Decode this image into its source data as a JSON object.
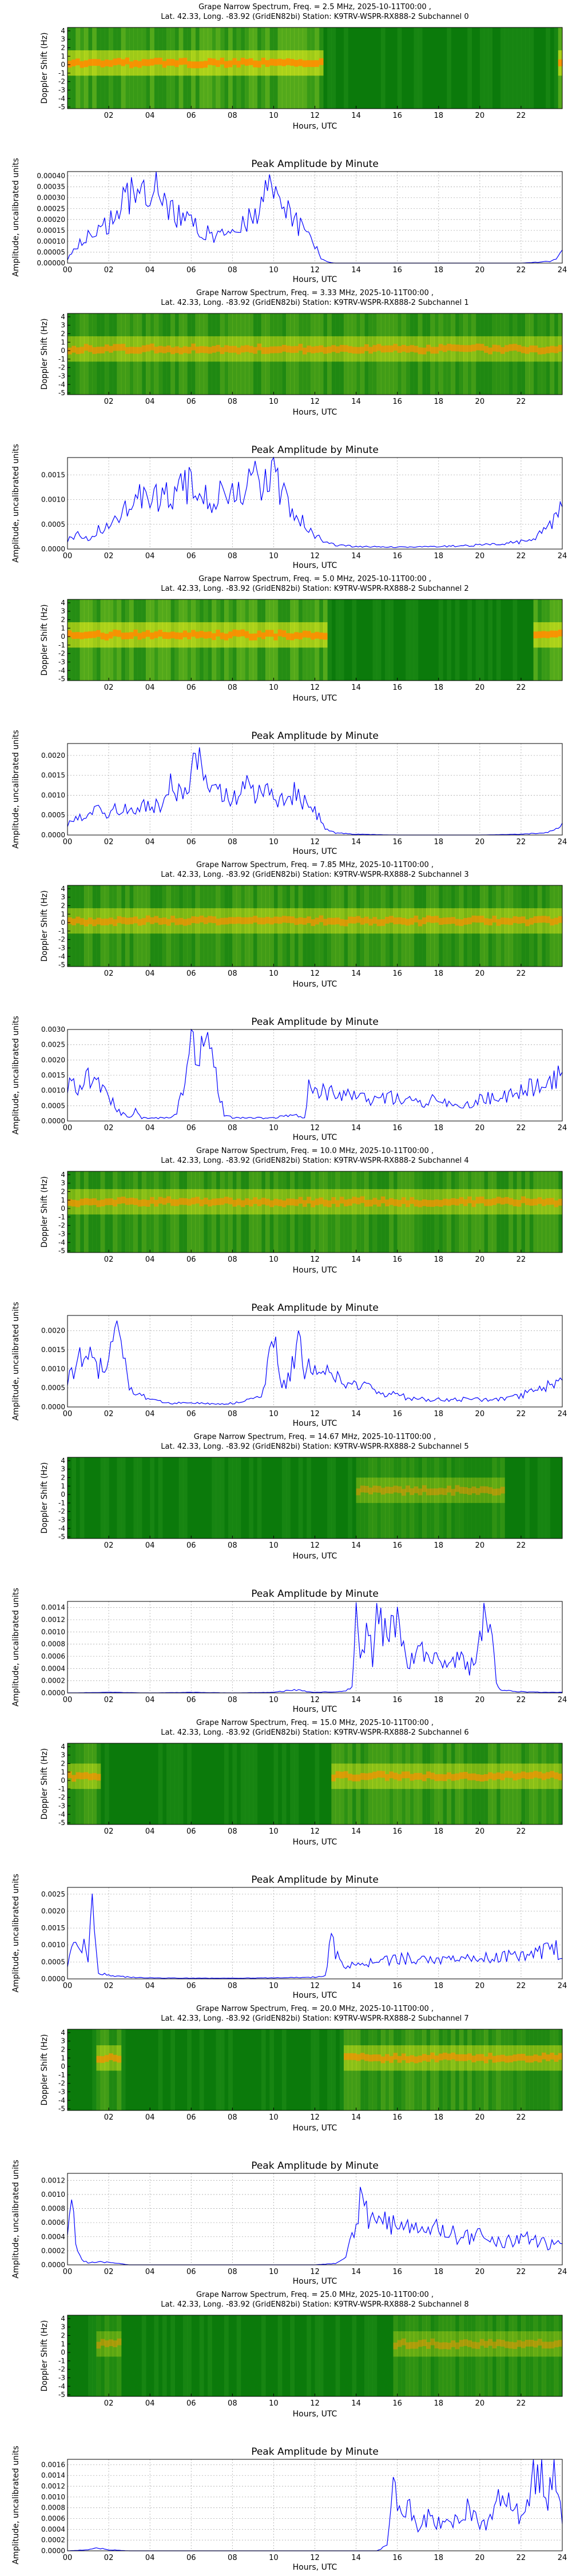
{
  "common": {
    "spec_ylabel": "Doppler Shift (Hz)",
    "amp_ylabel": "Amplitude, uncalibrated units",
    "xlabel": "Hours, UTC",
    "amp_title": "Peak Amplitude by Minute",
    "spec_xticks": [
      "02",
      "04",
      "06",
      "08",
      "10",
      "12",
      "14",
      "16",
      "18",
      "20",
      "22"
    ],
    "amp_xticks": [
      "00",
      "02",
      "04",
      "06",
      "08",
      "10",
      "12",
      "14",
      "16",
      "18",
      "20",
      "22",
      "24"
    ],
    "spec_yticks": [
      "4",
      "3",
      "2",
      "1",
      "0",
      "-1",
      "-2",
      "-3",
      "-4",
      "-5"
    ],
    "line_color": "#0000ff",
    "colors": {
      "dark_green": "#0b7a0b",
      "green": "#2f9c1f",
      "yellow": "#f2f21a",
      "orange": "#ff8c00",
      "red": "#ff1a00"
    }
  },
  "panels": [
    {
      "spec_title1": "Grape Narrow Spectrum, Freq. = 2.5 MHz, 2025-10-11T00:00 ,",
      "spec_title2": "Lat.  42.33, Long. -83.92 (GridEN82bi) Station: K9TRV-WSPR-RX888-2 Subchannel 0",
      "amp_yticks": [
        "0.00040",
        "0.00035",
        "0.00030",
        "0.00025",
        "0.00020",
        "0.00015",
        "0.00010",
        "0.00005",
        "0.00000"
      ],
      "spec_profile": {
        "active_hours": [
          [
            0,
            12.3
          ],
          [
            23.7,
            24
          ]
        ],
        "band_center_hz": 0.2,
        "intensity": "high"
      }
    },
    {
      "spec_title1": "Grape Narrow Spectrum, Freq. = 3.33 MHz, 2025-10-11T00:00 ,",
      "spec_title2": "Lat.  42.33, Long. -83.92 (GridEN82bi) Station: K9TRV-WSPR-RX888-2 Subchannel 1",
      "amp_yticks": [
        "0.0015",
        "0.0010",
        "0.0005",
        "0.0000"
      ],
      "spec_profile": {
        "active_hours": [
          [
            0,
            24
          ]
        ],
        "band_center_hz": 0.2,
        "intensity": "medium"
      }
    },
    {
      "spec_title1": "Grape Narrow Spectrum, Freq. = 5.0 MHz, 2025-10-11T00:00 ,",
      "spec_title2": "Lat.  42.33, Long. -83.92 (GridEN82bi) Station: K9TRV-WSPR-RX888-2 Subchannel 2",
      "amp_yticks": [
        "0.0020",
        "0.0015",
        "0.0010",
        "0.0005",
        "0.0000"
      ],
      "spec_profile": {
        "active_hours": [
          [
            0,
            12.5
          ],
          [
            22.5,
            24
          ]
        ],
        "band_center_hz": 0.2,
        "intensity": "high"
      }
    },
    {
      "spec_title1": "Grape Narrow Spectrum, Freq. = 7.85 MHz, 2025-10-11T00:00 ,",
      "spec_title2": "Lat.  42.33, Long. -83.92 (GridEN82bi) Station: K9TRV-WSPR-RX888-2 Subchannel 3",
      "amp_yticks": [
        "0.0030",
        "0.0025",
        "0.0020",
        "0.0015",
        "0.0010",
        "0.0005",
        "0.0000"
      ],
      "spec_profile": {
        "active_hours": [
          [
            0,
            24
          ]
        ],
        "band_center_hz": 0.2,
        "intensity": "medium"
      }
    },
    {
      "spec_title1": "Grape Narrow Spectrum, Freq. = 10.0 MHz, 2025-10-11T00:00 ,",
      "spec_title2": "Lat.  42.33, Long. -83.92 (GridEN82bi) Station: K9TRV-WSPR-RX888-2 Subchannel 4",
      "amp_yticks": [
        "0.0020",
        "0.0015",
        "0.0010",
        "0.0005",
        "0.0000"
      ],
      "spec_profile": {
        "active_hours": [
          [
            0,
            24
          ]
        ],
        "band_center_hz": 0.8,
        "intensity": "medium"
      }
    },
    {
      "spec_title1": "Grape Narrow Spectrum, Freq. = 14.67 MHz, 2025-10-11T00:00 ,",
      "spec_title2": "Lat.  42.33, Long. -83.92 (GridEN82bi) Station: K9TRV-WSPR-RX888-2 Subchannel 5",
      "amp_yticks": [
        "0.0014",
        "0.0012",
        "0.0010",
        "0.0008",
        "0.0006",
        "0.0004",
        "0.0002",
        "0.0000"
      ],
      "spec_profile": {
        "active_hours": [
          [
            13.8,
            21
          ]
        ],
        "band_center_hz": 0.5,
        "intensity": "low"
      }
    },
    {
      "spec_title1": "Grape Narrow Spectrum, Freq. = 15.0 MHz, 2025-10-11T00:00 ,",
      "spec_title2": "Lat.  42.33, Long. -83.92 (GridEN82bi) Station: K9TRV-WSPR-RX888-2 Subchannel 6",
      "amp_yticks": [
        "0.0025",
        "0.0020",
        "0.0015",
        "0.0010",
        "0.0005",
        "0.0000"
      ],
      "spec_profile": {
        "active_hours": [
          [
            0,
            1.5
          ],
          [
            12.8,
            24
          ]
        ],
        "band_center_hz": 0.5,
        "intensity": "medium"
      }
    },
    {
      "spec_title1": "Grape Narrow Spectrum, Freq. = 20.0 MHz, 2025-10-11T00:00 ,",
      "spec_title2": "Lat.  42.33, Long. -83.92 (GridEN82bi) Station: K9TRV-WSPR-RX888-2 Subchannel 7",
      "amp_yticks": [
        "0.0012",
        "0.0010",
        "0.0008",
        "0.0006",
        "0.0004",
        "0.0002",
        "0.0000"
      ],
      "spec_profile": {
        "active_hours": [
          [
            1.3,
            2.5
          ],
          [
            13.3,
            24
          ]
        ],
        "band_center_hz": 1.0,
        "intensity": "medium"
      }
    },
    {
      "spec_title1": "Grape Narrow Spectrum, Freq. = 25.0 MHz, 2025-10-11T00:00 ,",
      "spec_title2": "Lat.  42.33, Long. -83.92 (GridEN82bi) Station: K9TRV-WSPR-RX888-2 Subchannel 8",
      "amp_yticks": [
        "0.0016",
        "0.0014",
        "0.0012",
        "0.0010",
        "0.0008",
        "0.0006",
        "0.0004",
        "0.0002",
        "0.0000"
      ],
      "spec_profile": {
        "active_hours": [
          [
            1.3,
            2.5
          ],
          [
            15.7,
            24
          ]
        ],
        "band_center_hz": 1.0,
        "intensity": "low"
      }
    }
  ],
  "chart_data": [
    {
      "type": "line",
      "title": "Peak Amplitude by Minute",
      "subchannel": 0,
      "xlabel": "Hours, UTC",
      "ylabel": "Amplitude, uncalibrated units",
      "xlim": [
        0,
        24
      ],
      "ylim": [
        0,
        0.00042
      ],
      "x": [
        0,
        0.5,
        1,
        1.5,
        2,
        2.5,
        3,
        3.3,
        3.8,
        4.5,
        5,
        5.5,
        6,
        6.5,
        7,
        7.5,
        8,
        8.5,
        9,
        9.5,
        9.8,
        10.2,
        10.5,
        11,
        11.5,
        12,
        12.3,
        12.6,
        13,
        14,
        16,
        18,
        20,
        22,
        23,
        23.5,
        23.8,
        24
      ],
      "y": [
        2e-05,
        8e-05,
        0.00012,
        0.00015,
        0.00018,
        0.00025,
        0.0003,
        0.00039,
        0.00035,
        0.00032,
        0.00025,
        0.00022,
        0.00018,
        0.00014,
        0.00013,
        0.00012,
        0.00014,
        0.00018,
        0.00022,
        0.00028,
        0.00034,
        0.0003,
        0.00024,
        0.0002,
        0.00014,
        8e-05,
        2e-05,
        5e-06,
        0,
        0,
        0,
        0,
        0,
        0,
        5e-06,
        1e-05,
        3e-05,
        6e-05
      ]
    },
    {
      "type": "line",
      "title": "Peak Amplitude by Minute",
      "subchannel": 1,
      "xlabel": "Hours, UTC",
      "ylabel": "Amplitude, uncalibrated units",
      "xlim": [
        0,
        24
      ],
      "ylim": [
        0,
        0.00185
      ],
      "x": [
        0,
        0.5,
        1,
        1.5,
        2,
        2.5,
        3,
        3.5,
        4,
        4.5,
        5,
        5.5,
        6,
        6.5,
        7,
        7.5,
        8,
        8.5,
        9,
        9.5,
        10,
        10.3,
        10.6,
        11,
        11.5,
        12,
        12.5,
        13,
        14,
        16,
        18,
        20,
        21,
        22,
        23,
        23.5,
        24
      ],
      "y": [
        0.0002,
        0.0003,
        0.0002,
        0.0004,
        0.0005,
        0.0007,
        0.0009,
        0.0012,
        0.001,
        0.0011,
        0.001,
        0.0012,
        0.0013,
        0.0011,
        0.0009,
        0.0012,
        0.0013,
        0.0011,
        0.0015,
        0.0013,
        0.0017,
        0.0012,
        0.001,
        0.0007,
        0.0005,
        0.0003,
        0.00015,
        8e-05,
        5e-05,
        4e-05,
        5e-05,
        8e-05,
        0.0001,
        0.00015,
        0.0003,
        0.0005,
        0.00085
      ]
    },
    {
      "type": "line",
      "title": "Peak Amplitude by Minute",
      "subchannel": 2,
      "xlabel": "Hours, UTC",
      "ylabel": "Amplitude, uncalibrated units",
      "xlim": [
        0,
        24
      ],
      "ylim": [
        0,
        0.0023
      ],
      "x": [
        0,
        0.5,
        1,
        1.5,
        2,
        2.5,
        3,
        3.5,
        4,
        4.5,
        5,
        5.5,
        6,
        6.3,
        6.7,
        7,
        7.5,
        8,
        8.5,
        9,
        9.5,
        10,
        10.5,
        11,
        11.5,
        12,
        12.5,
        13,
        14,
        16,
        18,
        20,
        22,
        23,
        23.5,
        24
      ],
      "y": [
        0.0003,
        0.0004,
        0.0005,
        0.0006,
        0.0005,
        0.0007,
        0.0006,
        0.0008,
        0.0007,
        0.0008,
        0.0012,
        0.001,
        0.0014,
        0.0021,
        0.0013,
        0.0011,
        0.001,
        0.0009,
        0.0013,
        0.001,
        0.0012,
        0.001,
        0.0009,
        0.0011,
        0.0008,
        0.0006,
        0.0002,
        5e-05,
        2e-05,
        0,
        0,
        0,
        2e-05,
        5e-05,
        0.0001,
        0.0003
      ]
    },
    {
      "type": "line",
      "title": "Peak Amplitude by Minute",
      "subchannel": 3,
      "xlabel": "Hours, UTC",
      "ylabel": "Amplitude, uncalibrated units",
      "xlim": [
        0,
        24
      ],
      "ylim": [
        0,
        0.003
      ],
      "x": [
        0,
        0.5,
        1,
        1.5,
        2,
        2.5,
        3,
        3.3,
        3.6,
        4,
        4.5,
        5,
        5.3,
        5.6,
        6,
        6.5,
        7,
        7.3,
        7.6,
        8,
        9,
        10,
        11,
        11.5,
        11.7,
        12,
        13,
        14,
        15,
        16,
        17,
        18,
        19,
        20,
        21,
        22,
        23,
        23.5,
        24
      ],
      "y": [
        0.0013,
        0.0012,
        0.0014,
        0.0011,
        0.0008,
        0.0003,
        0.0001,
        0.0004,
        0.0001,
        0.0001,
        0.0001,
        0.0001,
        0.0002,
        0.0012,
        0.0027,
        0.0024,
        0.0028,
        0.0012,
        0.0002,
        0.0001,
        0.0001,
        0.0001,
        0.0002,
        0.0001,
        0.0012,
        0.001,
        0.0009,
        0.0008,
        0.0007,
        0.0008,
        0.0006,
        0.0007,
        0.0005,
        0.0007,
        0.0008,
        0.001,
        0.0012,
        0.0014,
        0.0016
      ]
    },
    {
      "type": "line",
      "title": "Peak Amplitude by Minute",
      "subchannel": 4,
      "xlabel": "Hours, UTC",
      "ylabel": "Amplitude, uncalibrated units",
      "xlim": [
        0,
        24
      ],
      "ylim": [
        0,
        0.0024
      ],
      "x": [
        0,
        0.5,
        1,
        1.5,
        2,
        2.2,
        2.6,
        3,
        3.5,
        4,
        5,
        6,
        7,
        8,
        9,
        9.5,
        10,
        10.3,
        10.6,
        11,
        11.2,
        11.5,
        12,
        12.5,
        13,
        14,
        15,
        16,
        17,
        18,
        19,
        20,
        21,
        22,
        23,
        24
      ],
      "y": [
        0.0008,
        0.0012,
        0.0015,
        0.001,
        0.0012,
        0.0022,
        0.0014,
        0.0006,
        0.0003,
        0.0002,
        0.0001,
        0.0001,
        8e-05,
        0.0001,
        0.0002,
        0.0004,
        0.0018,
        0.0008,
        0.0005,
        0.0013,
        0.0019,
        0.0009,
        0.0011,
        0.001,
        0.0008,
        0.0006,
        0.0004,
        0.0003,
        0.0002,
        0.0002,
        0.0002,
        0.0002,
        0.0002,
        0.0003,
        0.0005,
        0.0007
      ]
    },
    {
      "type": "line",
      "title": "Peak Amplitude by Minute",
      "subchannel": 5,
      "xlabel": "Hours, UTC",
      "ylabel": "Amplitude, uncalibrated units",
      "xlim": [
        0,
        24
      ],
      "ylim": [
        0,
        0.0015
      ],
      "x": [
        0,
        2,
        4,
        6,
        8,
        10,
        11,
        12,
        13,
        13.5,
        13.8,
        14,
        14.2,
        14.5,
        14.8,
        15,
        15.5,
        16,
        16.5,
        17,
        17.5,
        18,
        18.5,
        19,
        19.5,
        20,
        20.3,
        20.6,
        20.8,
        21,
        22,
        23,
        24
      ],
      "y": [
        0,
        1e-05,
        0,
        1e-05,
        0,
        1e-05,
        5e-05,
        1e-05,
        2e-05,
        3e-05,
        0.0001,
        0.0012,
        0.0005,
        0.0011,
        0.0006,
        0.0012,
        0.0009,
        0.0011,
        0.0005,
        0.0008,
        0.0005,
        0.0006,
        0.0005,
        0.0006,
        0.0004,
        0.0008,
        0.0014,
        0.0008,
        0.0002,
        5e-05,
        2e-05,
        1e-05,
        1e-05
      ]
    },
    {
      "type": "line",
      "title": "Peak Amplitude by Minute",
      "subchannel": 6,
      "xlabel": "Hours, UTC",
      "ylabel": "Amplitude, uncalibrated units",
      "xlim": [
        0,
        24
      ],
      "ylim": [
        0,
        0.0027
      ],
      "x": [
        0,
        0.3,
        0.6,
        0.8,
        1,
        1.2,
        1.5,
        2,
        3,
        4,
        6,
        8,
        10,
        12,
        12.5,
        12.8,
        13,
        13.5,
        14,
        15,
        16,
        17,
        18,
        19,
        20,
        21,
        22,
        23,
        23.5,
        24
      ],
      "y": [
        0.0005,
        0.001,
        0.0007,
        0.0013,
        0.0004,
        0.0024,
        0.0002,
        0.0001,
        5e-05,
        3e-05,
        2e-05,
        2e-05,
        3e-05,
        5e-05,
        0.0001,
        0.0012,
        0.0007,
        0.0004,
        0.0005,
        0.0005,
        0.0006,
        0.0006,
        0.0005,
        0.0006,
        0.0006,
        0.0007,
        0.0007,
        0.0008,
        0.0011,
        0.0006
      ]
    },
    {
      "type": "line",
      "title": "Peak Amplitude by Minute",
      "subchannel": 7,
      "xlabel": "Hours, UTC",
      "ylabel": "Amplitude, uncalibrated units",
      "xlim": [
        0,
        24
      ],
      "ylim": [
        0,
        0.0013
      ],
      "x": [
        0,
        0.2,
        0.5,
        0.8,
        1,
        1.5,
        2,
        2.5,
        3,
        4,
        6,
        8,
        10,
        12,
        13,
        13.5,
        14,
        14.3,
        14.6,
        15,
        15.5,
        16,
        17,
        18,
        19,
        20,
        21,
        22,
        23,
        23.5,
        24
      ],
      "y": [
        0.0006,
        0.0008,
        0.0002,
        5e-05,
        3e-05,
        5e-05,
        3e-05,
        2e-05,
        0,
        0,
        0,
        0,
        0,
        0,
        2e-05,
        0.0001,
        0.0006,
        0.0012,
        0.0005,
        0.0008,
        0.0006,
        0.0006,
        0.0005,
        0.0005,
        0.0004,
        0.0004,
        0.0003,
        0.0004,
        0.0003,
        0.0003,
        0.0003
      ]
    },
    {
      "type": "line",
      "title": "Peak Amplitude by Minute",
      "subchannel": 8,
      "xlabel": "Hours, UTC",
      "ylabel": "Amplitude, uncalibrated units",
      "xlim": [
        0,
        24
      ],
      "ylim": [
        0,
        0.0017
      ],
      "x": [
        0,
        1,
        1.5,
        2,
        3,
        4,
        6,
        8,
        10,
        12,
        14,
        15,
        15.5,
        15.8,
        16,
        16.5,
        17,
        17.5,
        18,
        18.5,
        19,
        19.5,
        20,
        20.5,
        21,
        21.5,
        22,
        22.5,
        23,
        23.3,
        23.6,
        24
      ],
      "y": [
        0,
        2e-05,
        5e-05,
        2e-05,
        0,
        0,
        0,
        0,
        0,
        0,
        0,
        0,
        0.0001,
        0.0012,
        0.0008,
        0.0009,
        0.0004,
        0.0006,
        0.0005,
        0.0005,
        0.0006,
        0.0008,
        0.0004,
        0.0006,
        0.001,
        0.0008,
        0.0006,
        0.0013,
        0.0015,
        0.0008,
        0.0016,
        0.0005
      ]
    }
  ]
}
